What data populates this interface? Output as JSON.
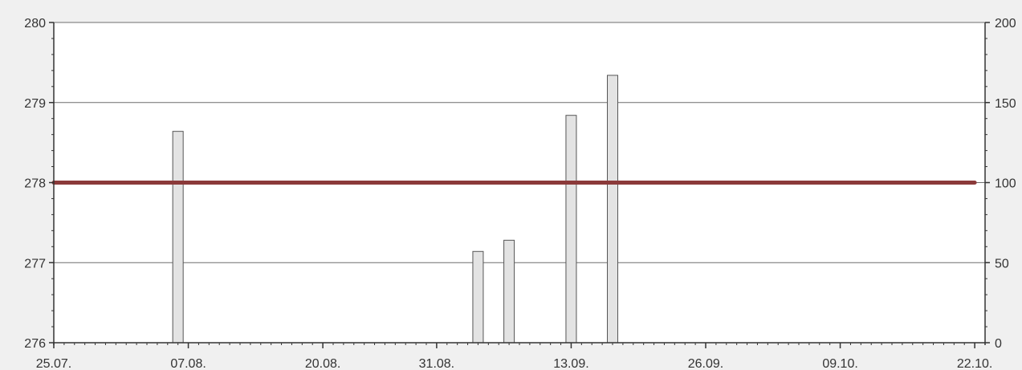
{
  "chart_data": {
    "type": "bar",
    "x": [
      "2024-08-06",
      "2024-09-04",
      "2024-09-07",
      "2024-09-13",
      "2024-09-17"
    ],
    "series": [
      {
        "type": "bar",
        "axis": "right",
        "values": [
          132,
          57,
          64,
          142,
          167
        ],
        "color": "#e3e3e3",
        "edge_color": "#555555"
      },
      {
        "type": "line",
        "axis": "left",
        "x": [
          "2024-07-25",
          "2024-10-22"
        ],
        "values": [
          278,
          278
        ],
        "color": "#8b3a3a"
      }
    ],
    "x_ticks": [
      "25.07.",
      "07.08.",
      "20.08.",
      "31.08.",
      "13.09.",
      "26.09.",
      "09.10.",
      "22.10."
    ],
    "x_tick_dates": [
      "2024-07-25",
      "2024-08-07",
      "2024-08-20",
      "2024-08-31",
      "2024-09-13",
      "2024-09-26",
      "2024-10-09",
      "2024-10-22"
    ],
    "xlim": [
      "2024-07-25",
      "2024-10-23"
    ],
    "y_left": {
      "ticks": [
        "276",
        "277",
        "278",
        "279",
        "280"
      ],
      "ylim": [
        276,
        280
      ]
    },
    "y_right": {
      "ticks": [
        "0",
        "50",
        "100",
        "150",
        "200"
      ],
      "ylim": [
        0,
        200
      ]
    },
    "grid": true,
    "colors": {
      "background": "#f0f0f0",
      "plot_background": "#ffffff",
      "grid": "#6e6e6e",
      "axis": "#333333"
    }
  }
}
